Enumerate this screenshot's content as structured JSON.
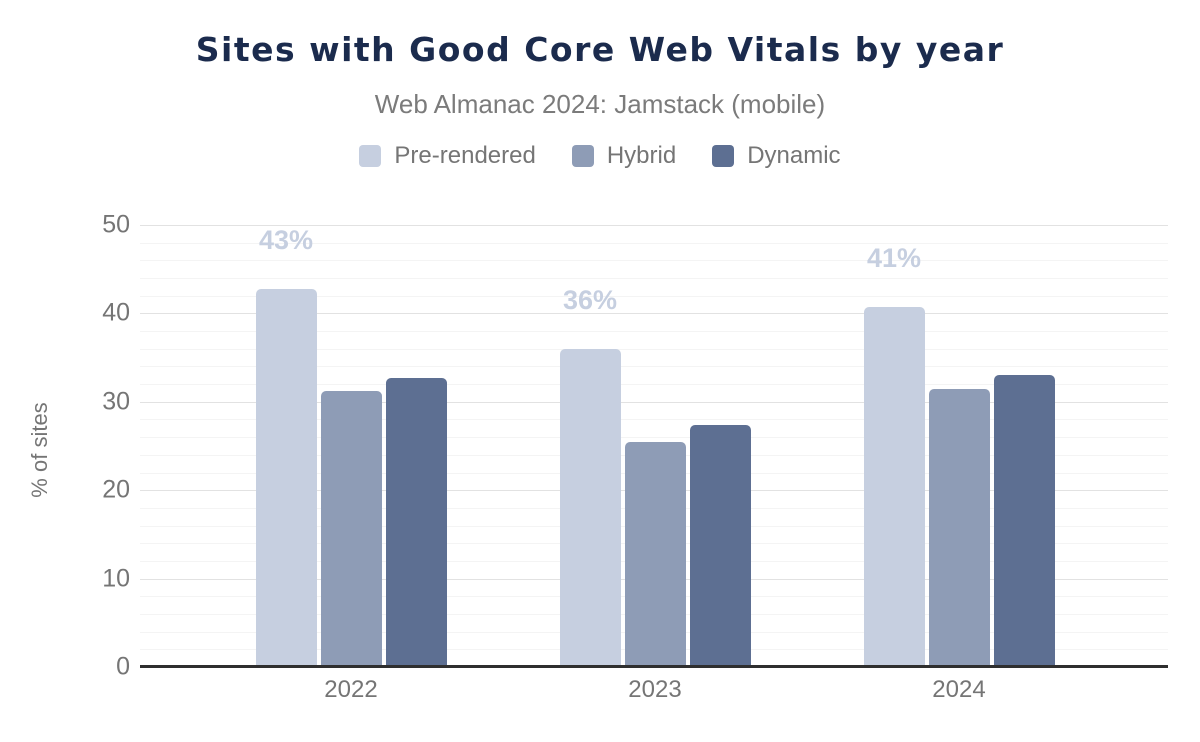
{
  "title": "Sites with Good Core Web Vitals by year",
  "subtitle": "Web Almanac 2024: Jamstack (mobile)",
  "chart_data": {
    "type": "bar",
    "categories": [
      "2022",
      "2023",
      "2024"
    ],
    "series": [
      {
        "name": "Pre-rendered",
        "color": "#c6cfe0",
        "values": [
          42.5,
          35.7,
          40.5
        ],
        "data_labels": [
          "43%",
          "36%",
          "41%"
        ]
      },
      {
        "name": "Hybrid",
        "color": "#8e9cb6",
        "values": [
          31.0,
          25.2,
          31.2
        ],
        "data_labels": []
      },
      {
        "name": "Dynamic",
        "color": "#5d6f92",
        "values": [
          32.5,
          27.2,
          32.8
        ],
        "data_labels": []
      }
    ],
    "xlabel": "",
    "ylabel": "% of sites",
    "ylim": [
      0,
      50
    ],
    "yticks": [
      0,
      10,
      20,
      30,
      40,
      50
    ],
    "minor_gridline_step": 2,
    "grid": "horizontal",
    "legend_position": "top-center"
  },
  "colors": {
    "background": "#ffffff",
    "title_text": "#1b2b4d",
    "muted_text": "#757575",
    "axis_line": "#2f2f2f",
    "grid_major": "#e2e2e2",
    "grid_minor": "#f4f4f4"
  }
}
